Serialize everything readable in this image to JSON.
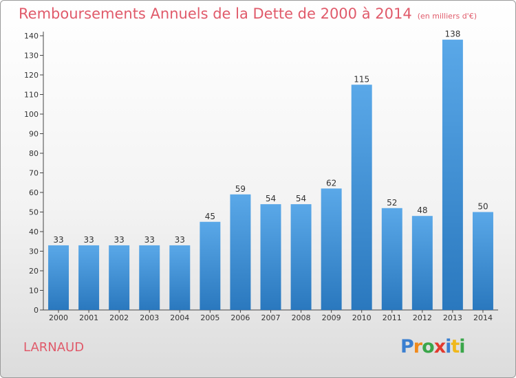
{
  "title": "Remboursements Annuels de la Dette de 2000 à 2014",
  "subtitle": "(en milliers d'€)",
  "commune": "LARNAUD",
  "brand": {
    "text": "Proxiti",
    "letters": [
      {
        "ch": "P",
        "color": "#3a7fd0"
      },
      {
        "ch": "r",
        "color": "#f08a1c"
      },
      {
        "ch": "o",
        "color": "#3aa64a"
      },
      {
        "ch": "x",
        "color": "#e23a2e"
      },
      {
        "ch": "i",
        "color": "#3a7fd0"
      },
      {
        "ch": "t",
        "color": "#f0b81c"
      },
      {
        "ch": "i",
        "color": "#3aa64a"
      }
    ]
  },
  "colors": {
    "bar_top": "#5aa8e8",
    "bar_bottom": "#2a78be",
    "title": "#e05a6a",
    "text": "#333333"
  },
  "chart_data": {
    "type": "bar",
    "title": "Remboursements Annuels de la Dette de 2000 à 2014",
    "subtitle": "(en milliers d'€)",
    "xlabel": "",
    "ylabel": "",
    "categories": [
      "2000",
      "2001",
      "2002",
      "2003",
      "2004",
      "2005",
      "2006",
      "2007",
      "2008",
      "2009",
      "2010",
      "2011",
      "2012",
      "2013",
      "2014"
    ],
    "values": [
      33,
      33,
      33,
      33,
      33,
      45,
      59,
      54,
      54,
      62,
      115,
      52,
      48,
      138,
      50
    ],
    "ylim": [
      0,
      140
    ],
    "yticks": [
      0,
      10,
      20,
      30,
      40,
      50,
      60,
      70,
      80,
      90,
      100,
      110,
      120,
      130,
      140
    ],
    "grid": false,
    "legend": "none"
  }
}
